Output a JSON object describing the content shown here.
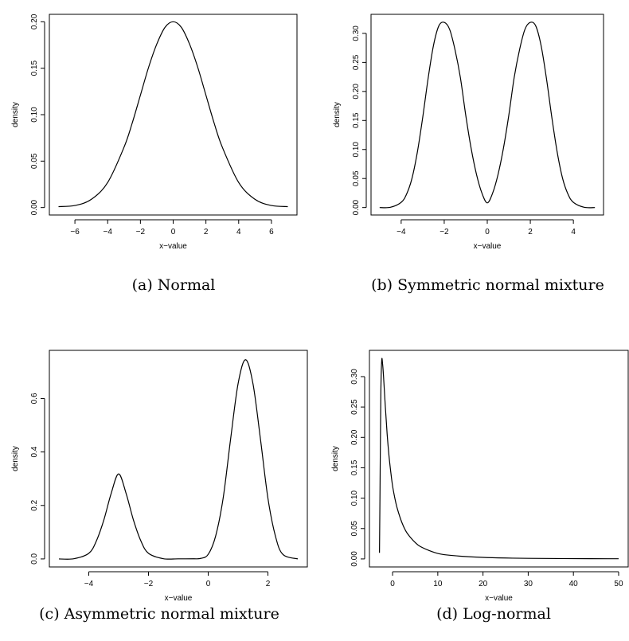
{
  "chart_data": [
    {
      "type": "line",
      "caption": "(a)  Normal",
      "xlabel": "x−value",
      "ylabel": "density",
      "xlim": [
        -7,
        7
      ],
      "ylim": [
        0,
        0.2
      ],
      "xticks": [
        -6,
        -4,
        -2,
        0,
        2,
        4,
        6
      ],
      "xtick_labels": [
        "−6",
        "−4",
        "−2",
        "0",
        "2",
        "4",
        "6"
      ],
      "yticks": [
        0,
        0.05,
        0.1,
        0.15,
        0.2
      ],
      "ytick_labels": [
        "0.00",
        "0.05",
        "0.10",
        "0.15",
        "0.20"
      ],
      "series": [
        {
          "x": [
            -7,
            -6,
            -5,
            -4,
            -3,
            -2.5,
            -2,
            -1.5,
            -1,
            -0.5,
            0,
            0.5,
            1,
            1.5,
            2,
            2.5,
            3,
            4,
            5,
            6,
            7
          ],
          "y": [
            0.001,
            0.0022,
            0.0088,
            0.027,
            0.065,
            0.091,
            0.121,
            0.151,
            0.176,
            0.194,
            0.2,
            0.194,
            0.176,
            0.151,
            0.121,
            0.091,
            0.065,
            0.027,
            0.0088,
            0.0022,
            0.001
          ]
        }
      ]
    },
    {
      "type": "line",
      "caption": "(b)  Symmetric normal mixture",
      "xlabel": "x−value",
      "ylabel": "density",
      "xlim": [
        -5,
        5
      ],
      "ylim": [
        0,
        0.32
      ],
      "xticks": [
        -4,
        -2,
        0,
        2,
        4
      ],
      "xtick_labels": [
        "−4",
        "−2",
        "0",
        "2",
        "4"
      ],
      "yticks": [
        0,
        0.05,
        0.1,
        0.15,
        0.2,
        0.25,
        0.3
      ],
      "ytick_labels": [
        "0.00",
        "0.05",
        "0.10",
        "0.15",
        "0.20",
        "0.25",
        "0.30"
      ],
      "series": [
        {
          "x": [
            -5,
            -4.5,
            -4,
            -3.75,
            -3.5,
            -3.25,
            -3,
            -2.75,
            -2.5,
            -2.25,
            -2,
            -1.75,
            -1.5,
            -1.25,
            -1,
            -0.75,
            -0.5,
            -0.25,
            0,
            0.25,
            0.5,
            0.75,
            1,
            1.25,
            1.5,
            1.75,
            2,
            2.25,
            2.5,
            2.75,
            3,
            3.25,
            3.5,
            3.75,
            4,
            4.5,
            5
          ],
          "y": [
            0,
            0.0005,
            0.009,
            0.023,
            0.05,
            0.095,
            0.155,
            0.222,
            0.279,
            0.313,
            0.319,
            0.307,
            0.272,
            0.224,
            0.159,
            0.102,
            0.057,
            0.025,
            0.008,
            0.025,
            0.057,
            0.102,
            0.159,
            0.224,
            0.272,
            0.307,
            0.319,
            0.313,
            0.279,
            0.222,
            0.155,
            0.095,
            0.05,
            0.023,
            0.009,
            0.0005,
            0
          ]
        }
      ]
    },
    {
      "type": "line",
      "caption": "(c)  Asymmetric normal mixture",
      "xlabel": "x−value",
      "ylabel": "density",
      "xlim": [
        -5,
        3
      ],
      "ylim": [
        0,
        0.75
      ],
      "xticks": [
        -4,
        -2,
        0,
        2
      ],
      "xtick_labels": [
        "−4",
        "−2",
        "0",
        "2"
      ],
      "yticks": [
        0,
        0.2,
        0.4,
        0.6
      ],
      "ytick_labels": [
        "0.0",
        "0.2",
        "0.4",
        "0.6"
      ],
      "series": [
        {
          "x": [
            -5,
            -4.5,
            -4,
            -3.75,
            -3.5,
            -3.25,
            -3,
            -2.75,
            -2.5,
            -2.25,
            -2,
            -1.5,
            -1,
            -0.5,
            -0.25,
            0,
            0.25,
            0.5,
            0.75,
            1,
            1.25,
            1.5,
            1.75,
            2,
            2.25,
            2.5,
            3
          ],
          "y": [
            0,
            0.0007,
            0.021,
            0.066,
            0.144,
            0.245,
            0.318,
            0.245,
            0.144,
            0.066,
            0.021,
            0.0008,
            0.0004,
            0.0005,
            0.002,
            0.017,
            0.086,
            0.227,
            0.448,
            0.655,
            0.745,
            0.655,
            0.448,
            0.227,
            0.086,
            0.017,
            0
          ]
        }
      ]
    },
    {
      "type": "line",
      "caption": "(d)  Log-normal",
      "xlabel": "x−value",
      "ylabel": "density",
      "xlim": [
        -3,
        50
      ],
      "ylim": [
        0,
        0.33
      ],
      "xticks": [
        0,
        10,
        20,
        30,
        40,
        50
      ],
      "xtick_labels": [
        "0",
        "10",
        "20",
        "30",
        "40",
        "50"
      ],
      "yticks": [
        0,
        0.05,
        0.1,
        0.15,
        0.2,
        0.25,
        0.3
      ],
      "ytick_labels": [
        "0.00",
        "0.05",
        "0.10",
        "0.15",
        "0.20",
        "0.25",
        "0.30"
      ],
      "series": [
        {
          "x": [
            -2.9,
            -2.8,
            -2.6,
            -2.4,
            -2.2,
            -2.0,
            -1.6,
            -1.2,
            -0.8,
            -0.4,
            0,
            0.5,
            1,
            2,
            3,
            4,
            5,
            6,
            8,
            10,
            12,
            15,
            20,
            25,
            30,
            40,
            50
          ],
          "y": [
            0.01,
            0.095,
            0.27,
            0.327,
            0.32,
            0.3,
            0.25,
            0.205,
            0.17,
            0.143,
            0.12,
            0.1,
            0.084,
            0.061,
            0.045,
            0.035,
            0.027,
            0.021,
            0.014,
            0.009,
            0.0065,
            0.0045,
            0.0025,
            0.0015,
            0.001,
            0.0005,
            0.0003
          ]
        }
      ]
    }
  ]
}
